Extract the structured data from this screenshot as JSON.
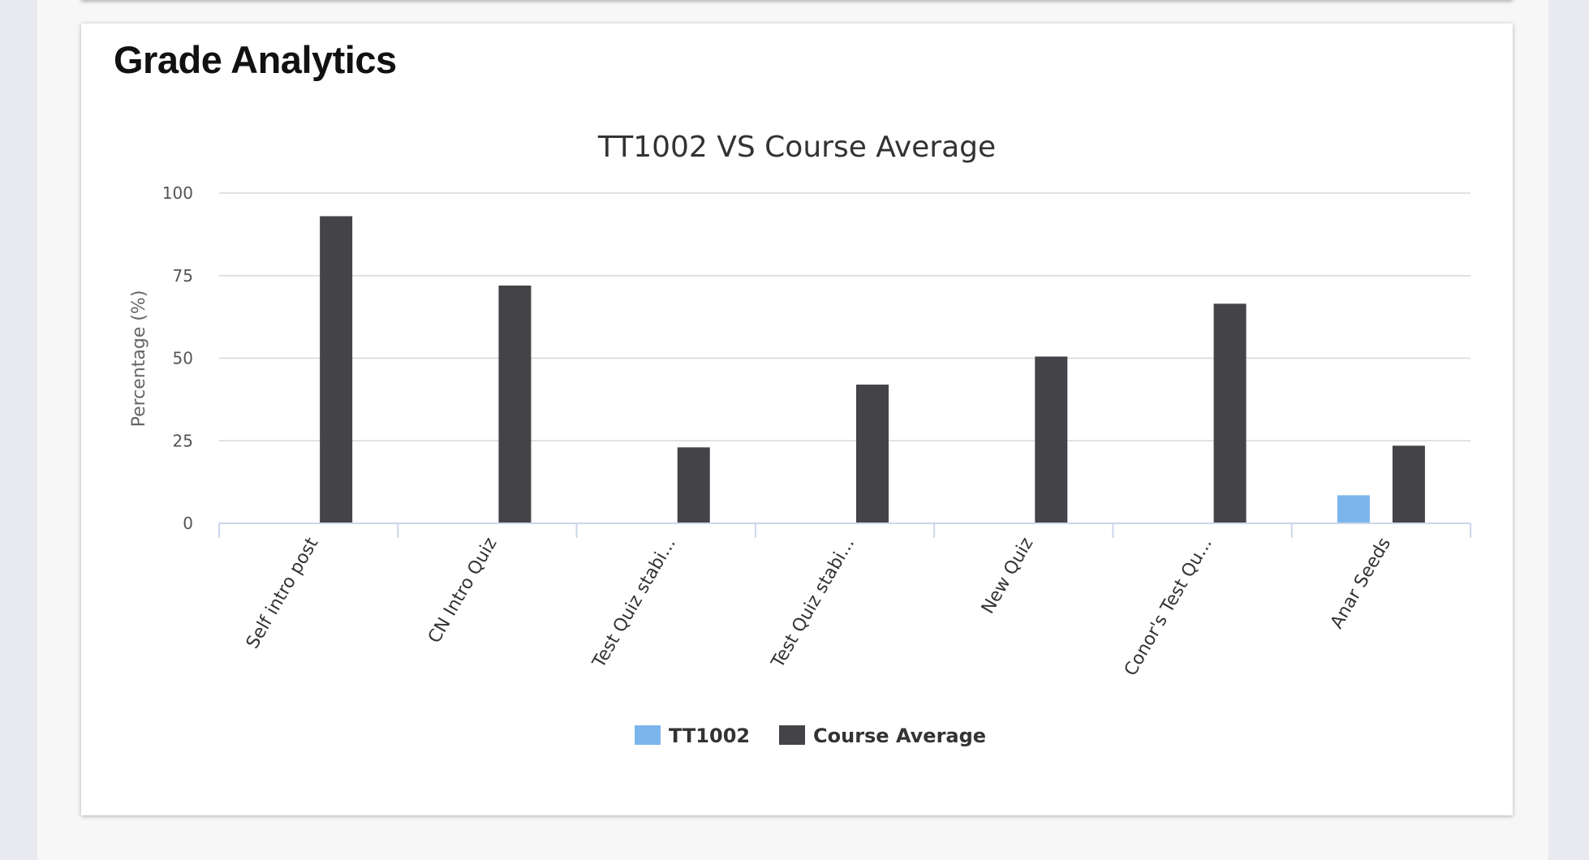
{
  "card": {
    "title": "Grade Analytics"
  },
  "colors": {
    "series_1": "#7cb5ec",
    "series_2": "#434348",
    "grid": "#d8d8d8",
    "axis": "#ccd6eb"
  },
  "chart_data": {
    "type": "bar",
    "title": "TT1002 VS Course Average",
    "xlabel": "",
    "ylabel": "Percentage (%)",
    "ylim": [
      0,
      100
    ],
    "yticks": [
      0,
      25,
      50,
      75,
      100
    ],
    "grid": true,
    "legend_position": "bottom-center",
    "categories": [
      "Self intro post",
      "CN Intro Quiz",
      "Test Quiz stabi...",
      "Test Quiz stabi...",
      "New Quiz",
      "Conor's Test Qu...",
      "Anar Seeds"
    ],
    "series": [
      {
        "name": "TT1002",
        "values": [
          0,
          0,
          0,
          0,
          0,
          0,
          8.5
        ]
      },
      {
        "name": "Course Average",
        "values": [
          93,
          72,
          23,
          42,
          50.5,
          66.5,
          23.5
        ]
      }
    ]
  }
}
